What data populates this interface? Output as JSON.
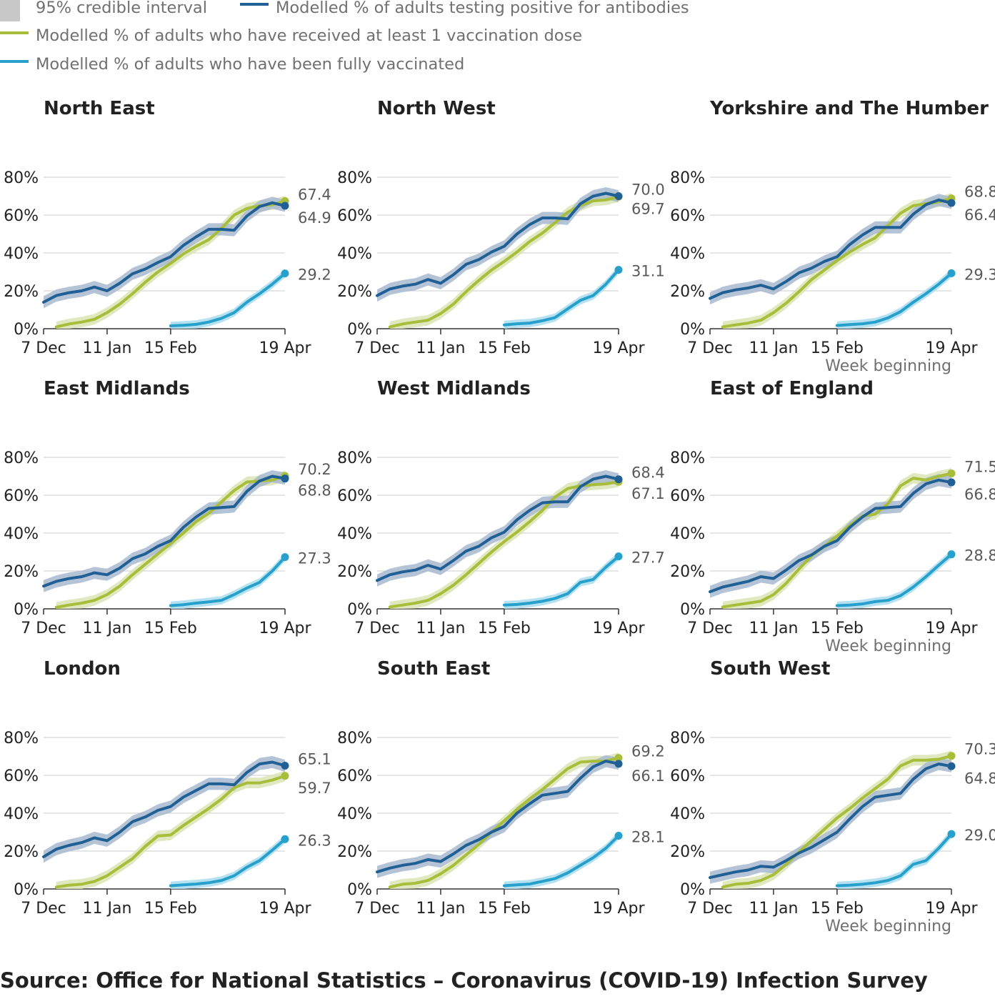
{
  "legend": {
    "interval": "95% credible interval",
    "antibodies": "Modelled % of adults testing positive for antibodies",
    "first_dose": "Modelled % of adults who have received at least 1 vaccination dose",
    "fully_vaccinated": "Modelled % of adults who have been fully vaccinated"
  },
  "source": "Source: Office for National Statistics – Coronavirus (COVID-19) Infection Survey",
  "colors": {
    "antibodies": "#206095",
    "antibodies_band": "#a8b9cf",
    "first_dose": "#a8bd3a",
    "first_dose_band": "#dbe4b4",
    "fully_vaccinated": "#27a0cc",
    "fully_vaccinated_band": "#a9dcee",
    "interval_swatch": "#c8c8c8",
    "grid": "#d6d6d6",
    "axis": "#333333",
    "label": "#595959"
  },
  "chart_data": {
    "type": "line",
    "x_tick_labels": [
      "7 Dec",
      "11 Jan",
      "15 Feb",
      "19 Apr"
    ],
    "x_tick_weeks": [
      0,
      5,
      10,
      19
    ],
    "y_tick_labels": [
      "80%",
      "60%",
      "40%",
      "20%",
      "0%"
    ],
    "y_tick_values": [
      80,
      60,
      40,
      20,
      0
    ],
    "ylim": [
      0,
      80
    ],
    "x_axis_title": "Week beginning",
    "panels": [
      {
        "title": "North East",
        "labels": {
          "top": "67.4",
          "mid": "64.9",
          "low": "29.2"
        },
        "antibodies": [
          14,
          17.5,
          19,
          20,
          22,
          20,
          24,
          29,
          31.5,
          35,
          38,
          44,
          48.5,
          52.5,
          52.5,
          52,
          59.5,
          64.5,
          66.5,
          64.9
        ],
        "first_dose": [
          null,
          1,
          2.5,
          3.5,
          5,
          8.5,
          13,
          18.5,
          24.5,
          30,
          34.5,
          39.5,
          43.5,
          47,
          53,
          60,
          63.5,
          65,
          65.5,
          67.4
        ],
        "fully_vaccinated": [
          null,
          null,
          null,
          null,
          null,
          null,
          null,
          null,
          null,
          null,
          1.5,
          1.8,
          2.3,
          3.5,
          5.5,
          8.5,
          14,
          18.5,
          23.5,
          29.2
        ]
      },
      {
        "title": "North West",
        "labels": {
          "top": "70.0",
          "mid": "69.7",
          "low": "31.1"
        },
        "antibodies": [
          17.5,
          21,
          22.5,
          23.5,
          26,
          24,
          28.5,
          34,
          36.5,
          40.5,
          43.5,
          50,
          55,
          58.5,
          58.5,
          58,
          66,
          70,
          71.5,
          70.0
        ],
        "first_dose": [
          null,
          1,
          2.5,
          3.5,
          4.5,
          8,
          13,
          19.5,
          25.5,
          31,
          35.5,
          40.5,
          46,
          50.5,
          56,
          61.5,
          65,
          67.5,
          68,
          69.7
        ],
        "fully_vaccinated": [
          null,
          null,
          null,
          null,
          null,
          null,
          null,
          null,
          null,
          null,
          2,
          2.6,
          3,
          4.2,
          5.9,
          10.5,
          15,
          17.5,
          23.5,
          31.1
        ]
      },
      {
        "title": "Yorkshire and The Humber",
        "labels": {
          "top": "68.8",
          "mid": "66.4",
          "low": "29.3"
        },
        "antibodies": [
          16,
          19,
          20.5,
          21.5,
          23,
          21,
          25,
          29.5,
          32,
          35.5,
          38,
          44.5,
          49.5,
          53.5,
          53.5,
          53.5,
          60.5,
          65.5,
          68,
          66.4
        ],
        "first_dose": [
          null,
          1,
          2,
          3,
          4.5,
          8.5,
          13.5,
          19.5,
          26,
          31,
          36,
          40.5,
          44.5,
          48,
          54.5,
          61,
          65,
          66,
          67,
          68.8
        ],
        "fully_vaccinated": [
          null,
          null,
          null,
          null,
          null,
          null,
          null,
          null,
          null,
          null,
          1.7,
          2.2,
          2.6,
          3.5,
          5.7,
          9,
          14,
          18.5,
          23.5,
          29.3
        ]
      },
      {
        "title": "East Midlands",
        "labels": {
          "top": "70.2",
          "mid": "68.8",
          "low": "27.3"
        },
        "antibodies": [
          12,
          14.5,
          16,
          17,
          19,
          18,
          21.5,
          26.5,
          29,
          33,
          36,
          43,
          48.5,
          53,
          53.5,
          54,
          62,
          67.5,
          70,
          68.8
        ],
        "first_dose": [
          null,
          0.8,
          2,
          3,
          4.5,
          7.5,
          12,
          18,
          23.5,
          29,
          34.5,
          40,
          46,
          50.5,
          56.5,
          62.5,
          67,
          67.5,
          68,
          70.2
        ],
        "fully_vaccinated": [
          null,
          null,
          null,
          null,
          null,
          null,
          null,
          null,
          null,
          null,
          1.7,
          2.2,
          3,
          3.7,
          4.5,
          7.5,
          11,
          14,
          20,
          27.3
        ]
      },
      {
        "title": "West Midlands",
        "labels": {
          "top": "68.4",
          "mid": "67.1",
          "low": "27.7"
        },
        "antibodies": [
          15,
          18,
          19.5,
          20.5,
          23,
          21,
          25.5,
          30.5,
          33,
          37.5,
          40.5,
          47,
          52,
          56,
          56.5,
          56.5,
          64.5,
          68.5,
          70,
          68.4
        ],
        "first_dose": [
          null,
          1,
          2,
          3,
          4.5,
          8,
          12.5,
          18,
          24,
          30,
          35.5,
          40.5,
          46,
          52,
          59,
          63.5,
          65,
          65.5,
          66,
          67.1
        ],
        "fully_vaccinated": [
          null,
          null,
          null,
          null,
          null,
          null,
          null,
          null,
          null,
          null,
          2,
          2.3,
          3,
          4,
          5.5,
          8,
          14,
          15.5,
          22,
          27.7
        ]
      },
      {
        "title": "East of England",
        "labels": {
          "top": "71.5",
          "mid": "66.8",
          "low": "28.8"
        },
        "antibodies": [
          9,
          11.5,
          13,
          14.5,
          17,
          16,
          20.5,
          25.5,
          28.5,
          33,
          36,
          43,
          48.5,
          53,
          53.5,
          54,
          61,
          66,
          68,
          66.8
        ],
        "first_dose": [
          null,
          1,
          2,
          3,
          4,
          7.5,
          13.5,
          21,
          28,
          33,
          38.5,
          44,
          49,
          50,
          55.5,
          65,
          69,
          68,
          70,
          71.5
        ],
        "fully_vaccinated": [
          null,
          null,
          null,
          null,
          null,
          null,
          null,
          null,
          null,
          null,
          1.7,
          2,
          2.6,
          3.8,
          4.5,
          7,
          11.5,
          17,
          23,
          28.8
        ]
      },
      {
        "title": "London",
        "labels": {
          "top": "65.1",
          "mid": "59.7",
          "low": "26.3"
        },
        "antibodies": [
          17,
          21,
          23,
          24.5,
          27,
          25.5,
          30,
          35.5,
          38,
          41.5,
          43.5,
          48.5,
          52,
          55.5,
          55.5,
          55,
          61.5,
          66,
          67,
          65.1
        ],
        "first_dose": [
          null,
          1,
          2,
          2.5,
          4,
          7,
          11.5,
          16,
          22.5,
          28,
          28.5,
          33.5,
          38,
          42.5,
          47.5,
          53.5,
          56,
          56,
          57.5,
          59.7
        ],
        "fully_vaccinated": [
          null,
          null,
          null,
          null,
          null,
          null,
          null,
          null,
          null,
          null,
          1.7,
          2.2,
          2.6,
          3.3,
          4.5,
          7,
          11.5,
          15,
          20.5,
          26.3
        ]
      },
      {
        "title": "South East",
        "labels": {
          "top": "69.2",
          "mid": "66.1",
          "low": "28.1"
        },
        "antibodies": [
          9,
          11,
          12.5,
          13.5,
          15.5,
          14.5,
          18.5,
          23,
          26,
          30,
          33,
          40,
          45,
          49.5,
          50.5,
          51.5,
          58.5,
          64.5,
          67.5,
          66.1
        ],
        "first_dose": [
          null,
          1,
          2.5,
          3,
          4.5,
          8,
          12.5,
          18,
          23.5,
          30,
          36,
          42,
          47.5,
          52.5,
          58,
          63.5,
          67,
          67.5,
          67.5,
          69.2
        ],
        "fully_vaccinated": [
          null,
          null,
          null,
          null,
          null,
          null,
          null,
          null,
          null,
          null,
          1.7,
          2.2,
          2.6,
          4,
          5.5,
          8.5,
          12.5,
          16.5,
          21.5,
          28.1
        ]
      },
      {
        "title": "South West",
        "labels": {
          "top": "70.3",
          "mid": "64.8",
          "low": "29.0"
        },
        "antibodies": [
          6,
          7.5,
          9,
          10,
          12,
          11.5,
          15,
          19,
          22,
          26,
          30,
          37,
          43.5,
          48.5,
          49.5,
          50.5,
          58,
          63.5,
          66,
          64.8
        ],
        "first_dose": [
          null,
          1,
          2.5,
          3,
          4.5,
          7.5,
          13,
          19.5,
          25.5,
          31.5,
          37.5,
          42.5,
          48,
          53,
          58,
          65,
          68,
          68,
          68.5,
          70.3
        ],
        "fully_vaccinated": [
          null,
          null,
          null,
          null,
          null,
          null,
          null,
          null,
          null,
          null,
          1.7,
          2,
          2.5,
          3.3,
          4.5,
          7,
          13,
          15,
          21.5,
          29.0
        ]
      }
    ]
  }
}
